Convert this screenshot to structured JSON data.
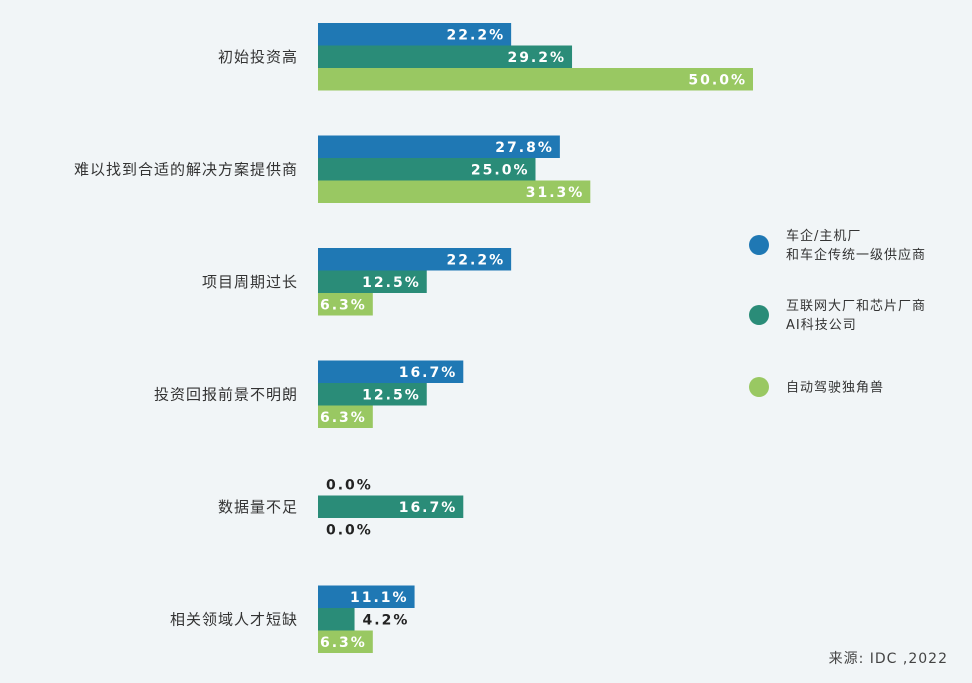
{
  "chart_data": {
    "type": "bar",
    "orientation": "horizontal",
    "categories": [
      "初始投资高",
      "难以找到合适的解决方案提供商",
      "项目周期过长",
      "投资回报前景不明朗",
      "数据量不足",
      "相关领域人才短缺"
    ],
    "series": [
      {
        "name": "车企/主机厂\n和车企传统一级供应商",
        "color": "#1f78b4",
        "values": [
          22.2,
          27.8,
          22.2,
          16.7,
          0.0,
          11.1
        ],
        "labels": [
          "22.2%",
          "27.8%",
          "22.2%",
          "16.7%",
          "0.0%",
          "11.1%"
        ]
      },
      {
        "name": "互联网大厂和芯片厂商\nAI科技公司",
        "color": "#2a8c78",
        "values": [
          29.2,
          25.0,
          12.5,
          12.5,
          16.7,
          4.2
        ],
        "labels": [
          "29.2%",
          "25.0%",
          "12.5%",
          "12.5%",
          "16.7%",
          "4.2%"
        ]
      },
      {
        "name": "自动驾驶独角兽",
        "color": "#99c862",
        "values": [
          50.0,
          31.3,
          6.3,
          6.3,
          0.0,
          6.3
        ],
        "labels": [
          "50.0%",
          "31.3%",
          "6.3%",
          "6.3%",
          "0.0%",
          "6.3%"
        ]
      }
    ],
    "legend_position": "right",
    "grid": false
  },
  "source": "来源: IDC ,2022"
}
